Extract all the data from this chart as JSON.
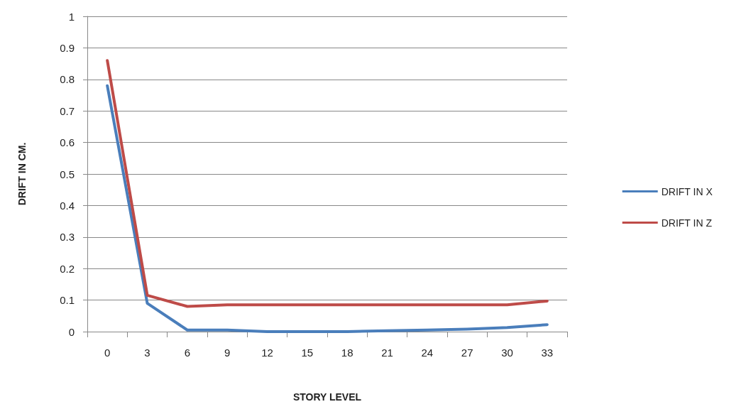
{
  "chart_data": {
    "type": "line",
    "xlabel": "STORY LEVEL",
    "ylabel": "DRIFT IN CM.",
    "categories": [
      "0",
      "3",
      "6",
      "9",
      "12",
      "15",
      "18",
      "21",
      "24",
      "27",
      "30",
      "33"
    ],
    "series": [
      {
        "name": "DRIFT IN X",
        "color": "#4a7ebb",
        "values": [
          0.78,
          0.09,
          0.005,
          0.005,
          0,
          0,
          0,
          0.003,
          0.005,
          0.008,
          0.013,
          0.022
        ]
      },
      {
        "name": "DRIFT IN Z",
        "color": "#be4b48",
        "values": [
          0.86,
          0.115,
          0.08,
          0.085,
          0.085,
          0.085,
          0.085,
          0.085,
          0.085,
          0.085,
          0.085,
          0.097
        ]
      }
    ],
    "ylim": [
      0,
      1
    ],
    "yticks": [
      0,
      0.1,
      0.2,
      0.3,
      0.4,
      0.5,
      0.6,
      0.7,
      0.8,
      0.9,
      1
    ],
    "grid": "y",
    "legend": "right",
    "marker": "none",
    "line_style": "solid"
  }
}
